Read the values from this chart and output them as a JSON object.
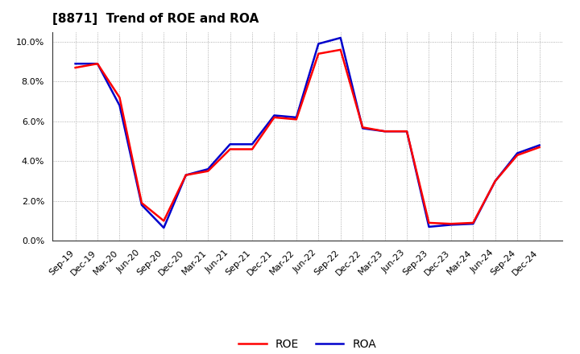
{
  "title": "[8871]  Trend of ROE and ROA",
  "x_labels": [
    "Sep-19",
    "Dec-19",
    "Mar-20",
    "Jun-20",
    "Sep-20",
    "Dec-20",
    "Mar-21",
    "Jun-21",
    "Sep-21",
    "Dec-21",
    "Mar-22",
    "Jun-22",
    "Sep-22",
    "Dec-22",
    "Mar-23",
    "Jun-23",
    "Sep-23",
    "Dec-23",
    "Mar-24",
    "Jun-24",
    "Sep-24",
    "Dec-24"
  ],
  "ROE": [
    8.7,
    8.9,
    7.2,
    1.9,
    1.0,
    3.3,
    3.5,
    4.6,
    4.6,
    6.2,
    6.1,
    9.4,
    9.6,
    5.7,
    5.5,
    5.5,
    0.9,
    0.85,
    0.9,
    3.0,
    4.3,
    4.7
  ],
  "ROA": [
    8.9,
    8.9,
    6.8,
    1.8,
    0.65,
    3.3,
    3.6,
    4.85,
    4.85,
    6.3,
    6.2,
    9.9,
    10.2,
    5.65,
    5.5,
    5.5,
    0.7,
    0.8,
    0.85,
    3.0,
    4.4,
    4.8
  ],
  "ROE_color": "#ff0000",
  "ROA_color": "#0000cc",
  "background_color": "#ffffff",
  "grid_color": "#999999",
  "ylim": [
    0.0,
    10.5
  ],
  "yticks": [
    0.0,
    2.0,
    4.0,
    6.0,
    8.0,
    10.0
  ],
  "title_fontsize": 11,
  "legend_fontsize": 10,
  "tick_fontsize": 8,
  "linewidth": 1.8
}
